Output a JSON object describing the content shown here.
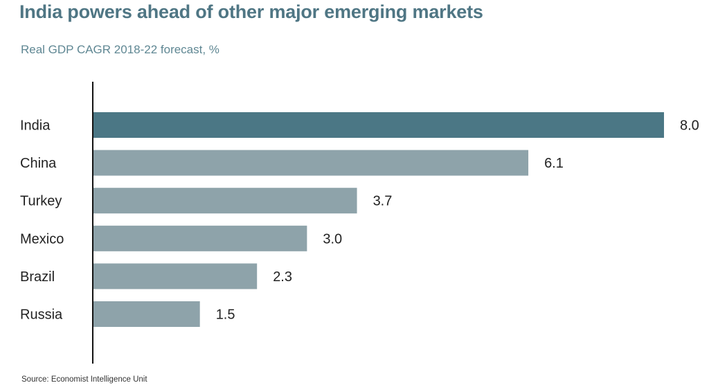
{
  "header": {
    "title": "India powers ahead of other major emerging markets",
    "subtitle": "Real GDP CAGR 2018-22 forecast, %"
  },
  "footer": {
    "source": "Source: Economist Intelligence Unit"
  },
  "colors": {
    "highlight_bar": "#4b7785",
    "other_bar": "#8ea3aa",
    "axis": "#111111"
  },
  "chart_data": {
    "type": "bar",
    "orientation": "horizontal",
    "title": "India powers ahead of other major emerging markets",
    "subtitle": "Real GDP CAGR 2018-22 forecast, %",
    "categories": [
      "India",
      "China",
      "Turkey",
      "Mexico",
      "Brazil",
      "Russia"
    ],
    "values": [
      8.0,
      6.1,
      3.7,
      3.0,
      2.3,
      1.5
    ],
    "value_labels": [
      "8.0",
      "6.1",
      "3.7",
      "3.0",
      "2.3",
      "1.5"
    ],
    "highlight": [
      "India"
    ],
    "xlim": [
      0,
      8.0
    ],
    "xlabel": "",
    "ylabel": "",
    "grid": false,
    "legend": "none",
    "source": "Source: Economist Intelligence Unit"
  }
}
